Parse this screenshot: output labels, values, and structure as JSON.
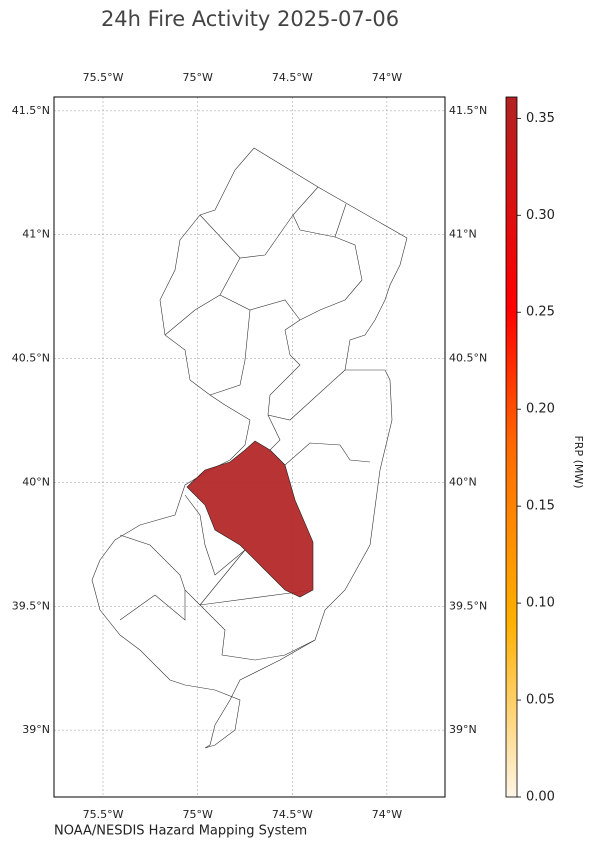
{
  "title": "24h Fire Activity 2025-07-06",
  "map": {
    "xlim": [
      -75.759,
      -73.693
    ],
    "ylim": [
      38.73,
      41.556
    ],
    "xticks": [
      {
        "value": -75.5,
        "label": "75.5°W"
      },
      {
        "value": -75,
        "label": "75°W"
      },
      {
        "value": -74.5,
        "label": "74.5°W"
      },
      {
        "value": -74,
        "label": "74°W"
      }
    ],
    "yticks": [
      {
        "value": 39,
        "label": "39°N"
      },
      {
        "value": 39.5,
        "label": "39.5°N"
      },
      {
        "value": 40,
        "label": "40°N"
      },
      {
        "value": 40.5,
        "label": "40.5°N"
      },
      {
        "value": 41,
        "label": "41°N"
      },
      {
        "value": 41.5,
        "label": "41.5°N"
      }
    ],
    "grid": true
  },
  "colorbar": {
    "label": "FRP (MW)",
    "ylim": [
      0,
      0.361
    ],
    "yticks": [
      {
        "value": 0,
        "label": "0.00"
      },
      {
        "value": 0.05,
        "label": "0.05"
      },
      {
        "value": 0.1,
        "label": "0.10"
      },
      {
        "value": 0.15,
        "label": "0.15"
      },
      {
        "value": 0.2,
        "label": "0.20"
      },
      {
        "value": 0.25,
        "label": "0.25"
      },
      {
        "value": 0.3,
        "label": "0.30"
      },
      {
        "value": 0.35,
        "label": "0.35"
      }
    ]
  },
  "source": "NOAA/NESDIS Hazard Mapping System"
}
